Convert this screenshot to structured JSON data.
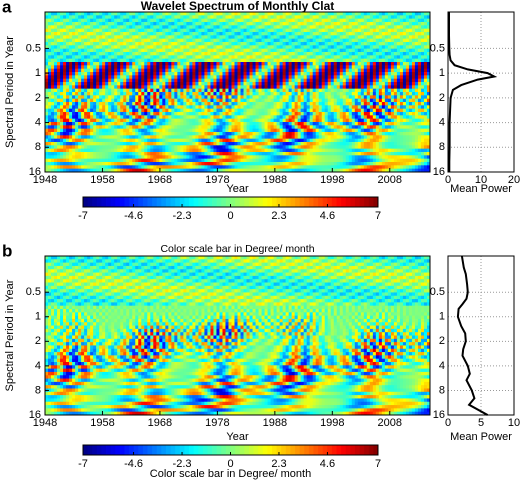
{
  "chart_data": [
    {
      "panel_label": "a",
      "title": "Wavelet Spectrum of Monthly Clat",
      "heatmap": {
        "type": "heatmap",
        "xlabel": "Year",
        "ylabel": "Spectral Period in Year",
        "xlim": [
          1948,
          2015
        ],
        "xticks": [
          1948,
          1958,
          1968,
          1978,
          1988,
          1998,
          2008
        ],
        "ylim": [
          0.18,
          16
        ],
        "yscale": "log",
        "yreverse": true,
        "yticks": [
          0.5,
          1,
          2,
          4,
          8,
          16
        ],
        "colormap": "jet"
      },
      "colorbar": {
        "lim": [
          -7,
          7
        ],
        "ticks": [
          -7,
          -4.6,
          -2.3,
          0,
          2.3,
          4.6,
          7
        ]
      },
      "power": {
        "type": "line",
        "xlabel": "Mean Power",
        "xlim": [
          0,
          20
        ],
        "xticks": [
          0,
          10,
          20
        ],
        "grid": true,
        "color": "#000000",
        "y": [
          0.18,
          0.25,
          0.35,
          0.5,
          0.6,
          0.7,
          0.8,
          0.9,
          1,
          1.1,
          1.2,
          1.4,
          1.6,
          2,
          3,
          4,
          6,
          8,
          12,
          16
        ],
        "values": [
          0.3,
          0.3,
          0.3,
          0.4,
          0.5,
          0.8,
          2,
          6,
          12,
          14,
          9,
          4,
          1.5,
          0.8,
          0.6,
          0.5,
          0.5,
          0.5,
          0.4,
          0.4
        ]
      }
    },
    {
      "panel_label": "b",
      "title": "Color scale bar in Degree/ month",
      "heatmap": {
        "type": "heatmap",
        "xlabel": "Year",
        "ylabel": "Spectral Period in Year",
        "xlim": [
          1948,
          2015
        ],
        "xticks": [
          1948,
          1958,
          1968,
          1978,
          1988,
          1998,
          2008
        ],
        "ylim": [
          0.18,
          16
        ],
        "yscale": "log",
        "yreverse": true,
        "yticks": [
          0.5,
          1,
          2,
          4,
          8,
          16
        ],
        "colormap": "jet"
      },
      "colorbar": {
        "lim": [
          -7,
          7
        ],
        "ticks": [
          -7,
          -4.6,
          -2.3,
          0,
          2.3,
          4.6,
          7
        ],
        "label": "Color scale bar in Degree/ month"
      },
      "power": {
        "type": "line",
        "xlabel": "Mean Power",
        "xlim": [
          0,
          10
        ],
        "xticks": [
          0,
          5,
          10
        ],
        "grid": true,
        "color": "#000000",
        "y": [
          0.18,
          0.25,
          0.3,
          0.4,
          0.5,
          0.6,
          0.7,
          0.8,
          1,
          1.3,
          1.6,
          2,
          2.5,
          3,
          4,
          5,
          6,
          8,
          10,
          12,
          16
        ],
        "values": [
          2.1,
          2.4,
          2.7,
          2.9,
          3.0,
          2.8,
          2.2,
          1.6,
          1.5,
          2.0,
          2.6,
          2.7,
          2.3,
          2.2,
          3.0,
          3.3,
          2.8,
          3.6,
          4.0,
          3.2,
          6.0
        ]
      }
    }
  ]
}
